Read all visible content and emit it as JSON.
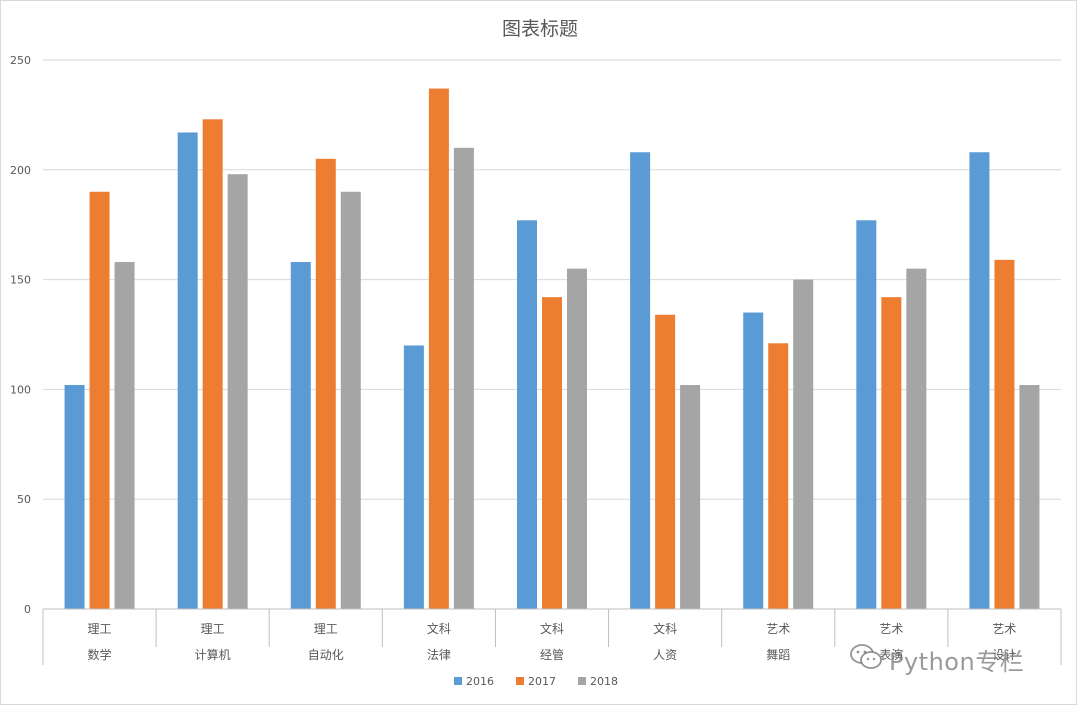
{
  "chart_data": {
    "type": "bar",
    "title": "图表标题",
    "xlabel": "",
    "ylabel": "",
    "ylim": [
      0,
      250
    ],
    "yticks": [
      0,
      50,
      100,
      150,
      200,
      250
    ],
    "grid": true,
    "legend_position": "bottom",
    "category_groups": [
      "理工",
      "理工",
      "理工",
      "文科",
      "文科",
      "文科",
      "艺术",
      "艺术",
      "艺术"
    ],
    "categories": [
      "数学",
      "计算机",
      "自动化",
      "法律",
      "经管",
      "人资",
      "舞蹈",
      "表演",
      "设计"
    ],
    "series": [
      {
        "name": "2016",
        "color": "#5b9bd5",
        "values": [
          102,
          217,
          158,
          120,
          177,
          208,
          135,
          177,
          208
        ]
      },
      {
        "name": "2017",
        "color": "#ed7d31",
        "values": [
          190,
          223,
          205,
          237,
          142,
          134,
          121,
          142,
          159
        ]
      },
      {
        "name": "2018",
        "color": "#a5a5a5",
        "values": [
          158,
          198,
          190,
          210,
          155,
          102,
          150,
          155,
          102
        ]
      }
    ]
  },
  "watermark": {
    "text": "Python专栏",
    "icon": "wechat-icon"
  }
}
